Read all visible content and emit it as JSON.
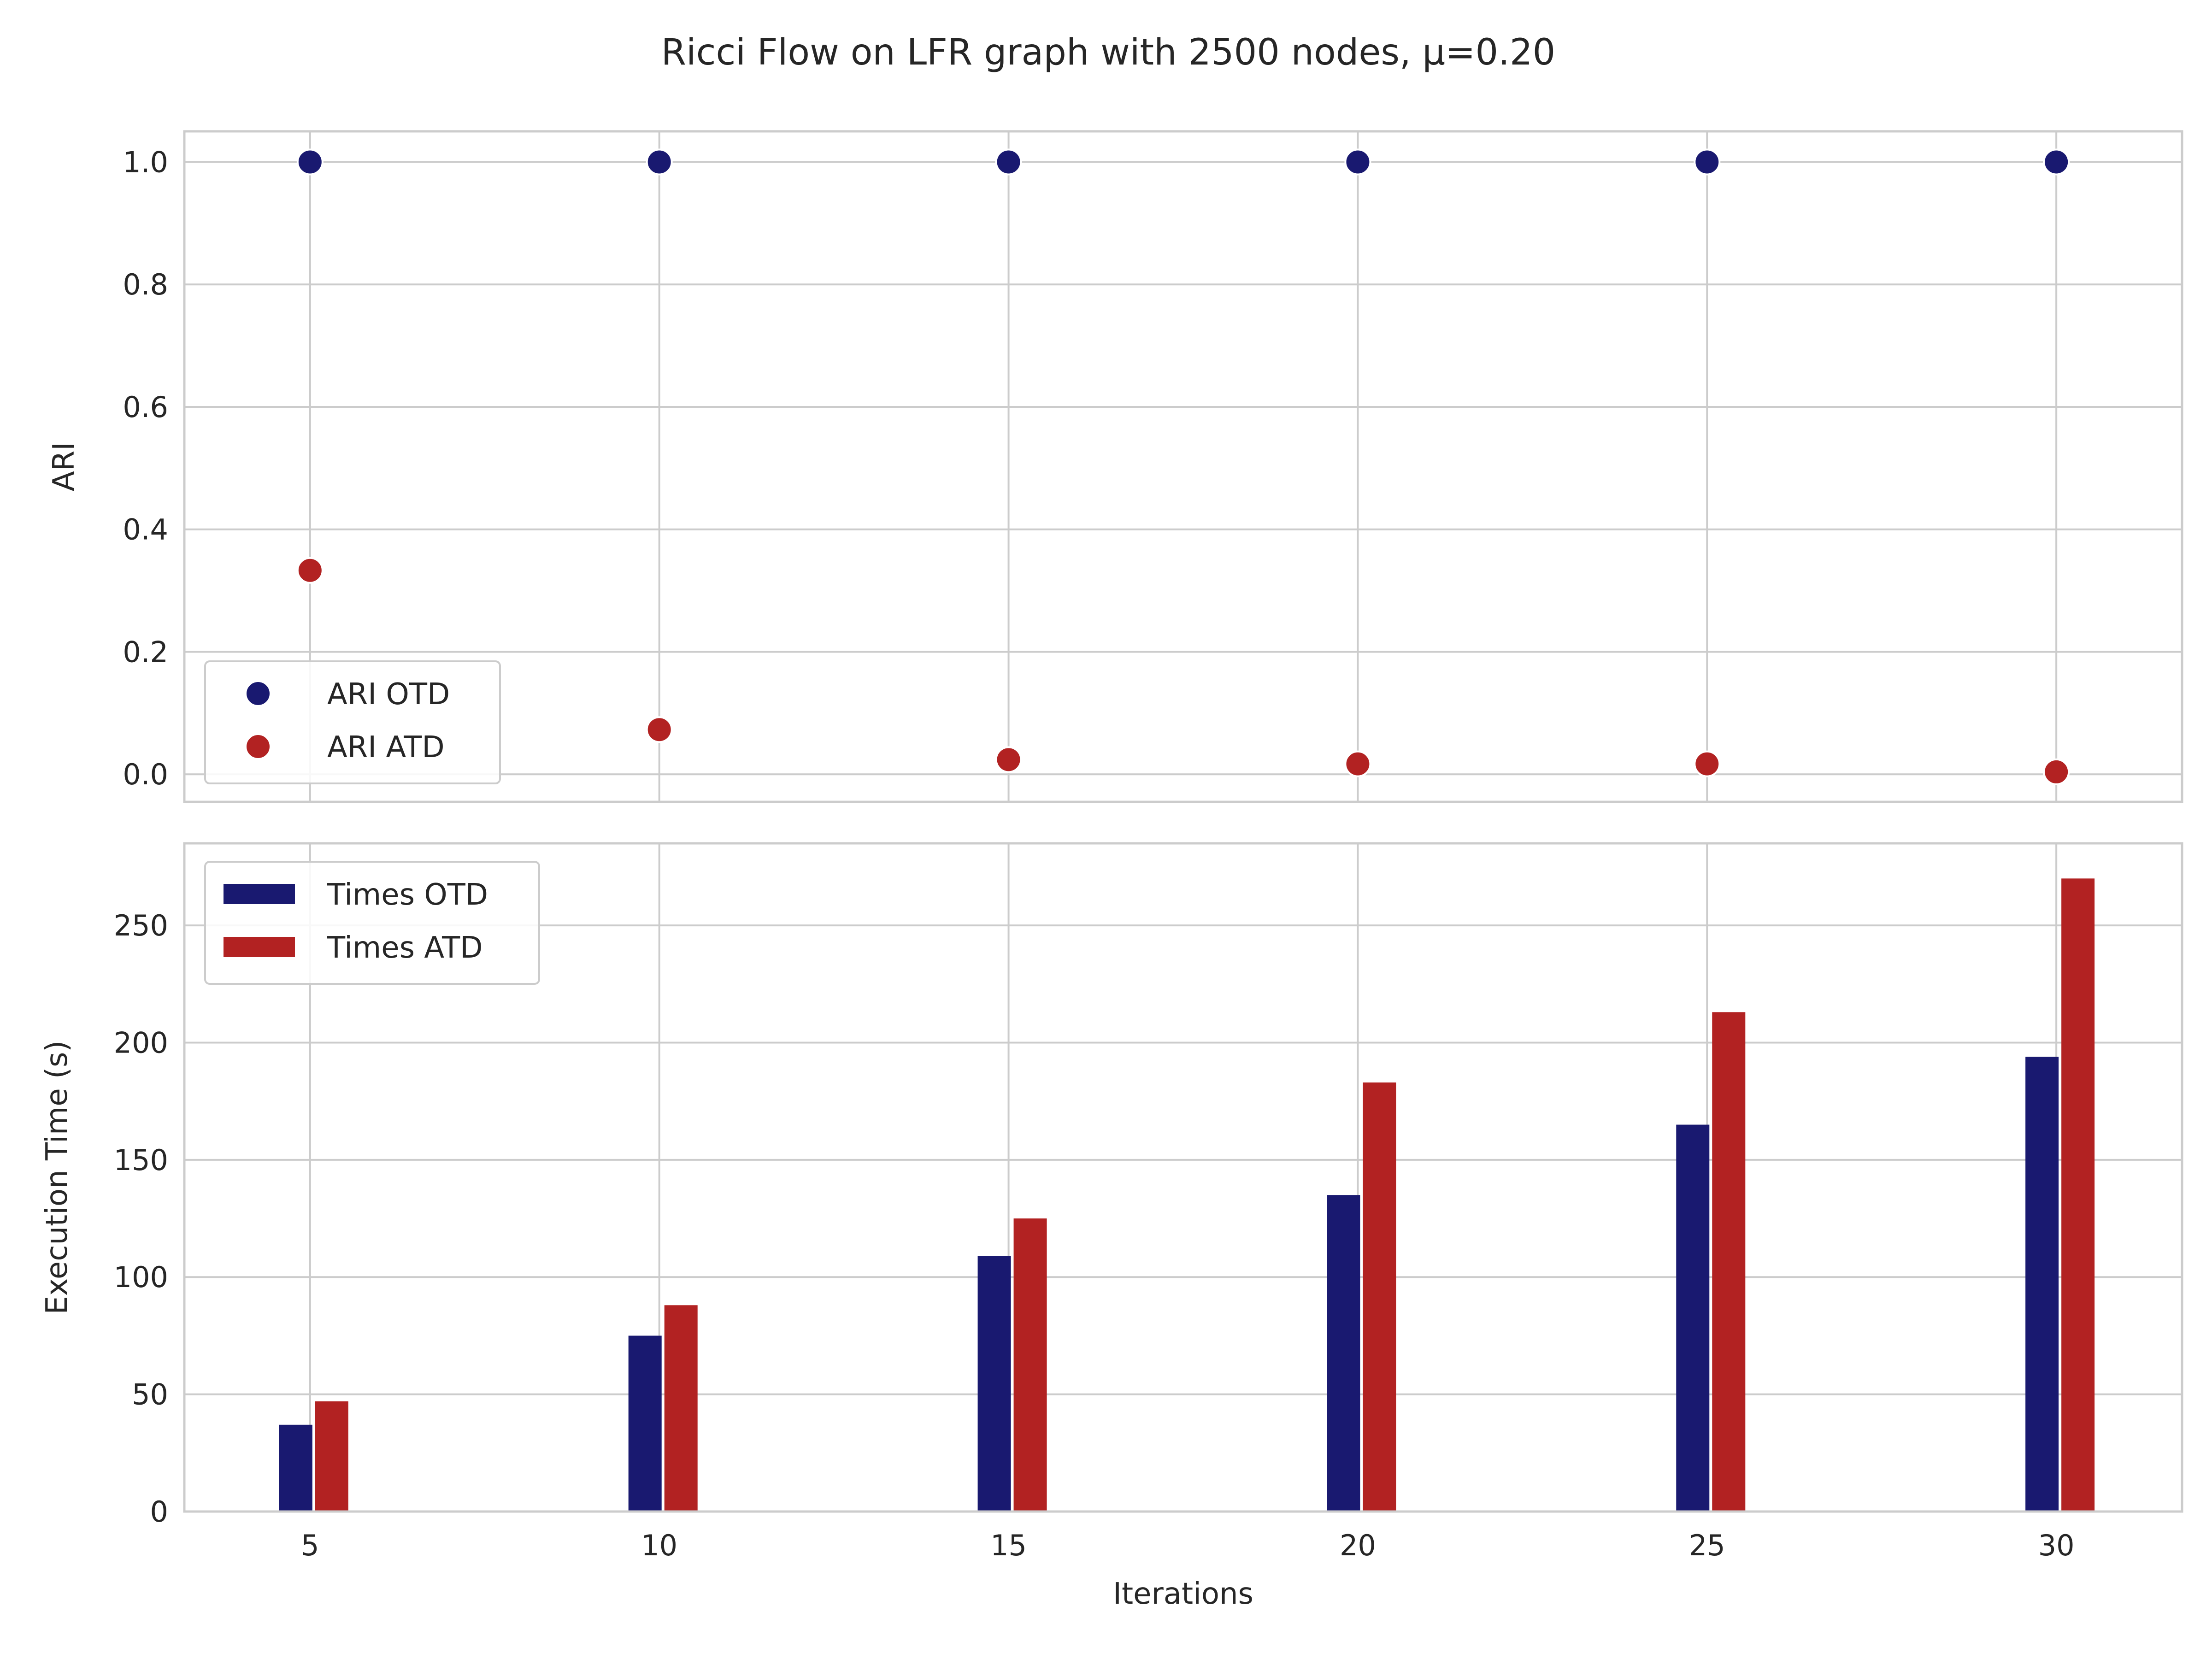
{
  "chart_data": [
    {
      "type": "scatter",
      "title": "Ricci Flow on LFR graph with 2500 nodes, μ=0.20",
      "xlabel": "",
      "ylabel": "ARI",
      "x": [
        5,
        10,
        15,
        20,
        25,
        30
      ],
      "xlim": [
        3.2,
        31.8
      ],
      "ylim": [
        -0.045,
        1.05
      ],
      "yticks": [
        "0.0",
        "0.2",
        "0.4",
        "0.6",
        "0.8",
        "1.0"
      ],
      "grid": true,
      "legend": "lower-left",
      "series": [
        {
          "name": "ARI OTD",
          "values": [
            1.0,
            1.0,
            1.0,
            1.0,
            1.0,
            1.0
          ],
          "color": "#191970"
        },
        {
          "name": "ARI ATD",
          "values": [
            0.333,
            0.073,
            0.024,
            0.017,
            0.017,
            0.004
          ],
          "color": "#b22222"
        }
      ]
    },
    {
      "type": "bar",
      "xlabel": "Iterations",
      "ylabel": "Execution Time (s)",
      "categories": [
        "5",
        "10",
        "15",
        "20",
        "25",
        "30"
      ],
      "x": [
        5,
        10,
        15,
        20,
        25,
        30
      ],
      "xlim": [
        3.2,
        31.8
      ],
      "ylim": [
        0,
        285
      ],
      "yticks": [
        "0",
        "50",
        "100",
        "150",
        "200",
        "250"
      ],
      "grid": true,
      "legend": "upper-left",
      "series": [
        {
          "name": "Times OTD",
          "values": [
            37,
            75,
            109,
            135,
            165,
            194
          ],
          "color": "#191970"
        },
        {
          "name": "Times ATD",
          "values": [
            47,
            88,
            125,
            183,
            213,
            270
          ],
          "color": "#b22222"
        }
      ]
    }
  ]
}
